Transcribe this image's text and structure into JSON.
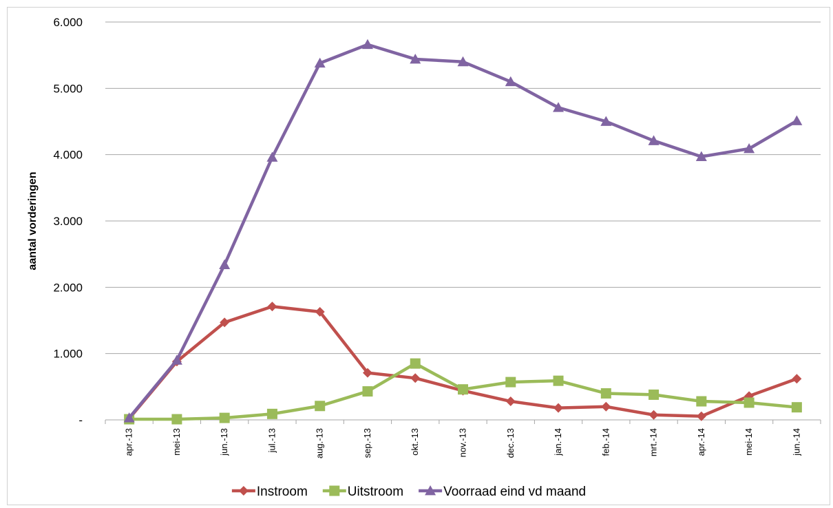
{
  "chart_data": {
    "type": "line",
    "title": "",
    "xlabel": "",
    "ylabel": "aantal vorderingen",
    "ylim": [
      0,
      6000
    ],
    "yticks": [
      0,
      1000,
      2000,
      3000,
      4000,
      5000,
      6000
    ],
    "ytick_labels": [
      "-",
      "1.000",
      "2.000",
      "3.000",
      "4.000",
      "5.000",
      "6.000"
    ],
    "grid": true,
    "legend_position": "bottom",
    "categories": [
      "apr.-13",
      "mei-13",
      "jun.-13",
      "jul.-13",
      "aug.-13",
      "sep.-13",
      "okt.-13",
      "nov.-13",
      "dec.-13",
      "jan.-14",
      "feb.-14",
      "mrt.-14",
      "apr.-14",
      "mei-14",
      "jun.-14"
    ],
    "series": [
      {
        "name": "Instroom",
        "color": "#c0504d",
        "marker": "diamond",
        "values": [
          20,
          880,
          1470,
          1710,
          1630,
          710,
          630,
          440,
          280,
          180,
          200,
          75,
          55,
          360,
          620
        ]
      },
      {
        "name": "Uitstroom",
        "color": "#9bbb59",
        "marker": "square",
        "values": [
          10,
          10,
          30,
          90,
          210,
          430,
          850,
          460,
          570,
          590,
          400,
          380,
          280,
          260,
          190
        ]
      },
      {
        "name": "Voorraad eind vd maand",
        "color": "#8064a2",
        "marker": "triangle",
        "values": [
          30,
          900,
          2340,
          3960,
          5380,
          5660,
          5440,
          5400,
          5100,
          4710,
          4500,
          4210,
          3970,
          4090,
          4510
        ]
      }
    ]
  }
}
